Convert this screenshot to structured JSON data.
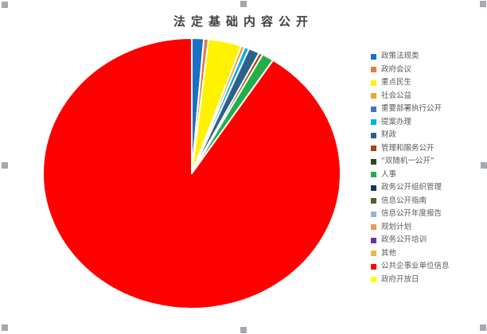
{
  "selection": {
    "handle_color": "#a4a8b1",
    "handles": [
      {
        "name": "top-left"
      },
      {
        "name": "top-middle"
      },
      {
        "name": "top-right"
      },
      {
        "name": "middle-left"
      },
      {
        "name": "middle-right"
      },
      {
        "name": "bottom-left"
      },
      {
        "name": "bottom-middle"
      },
      {
        "name": "bottom-right"
      }
    ]
  },
  "chart_data": {
    "type": "pie",
    "title": "法定基础内容公开",
    "legend_position": "right",
    "start_angle_deg": 0,
    "direction": "clockwise",
    "slice_border_color": "#ffffff",
    "categories": [
      "政策法规类",
      "政府会议",
      "重点民生",
      "社会公益",
      "重要部署执行公开",
      "提案办理",
      "财政",
      "管理和服务公开",
      "“双随机一公开”",
      "人事",
      "政务公开组织管理",
      "信息公开指南",
      "信息公开年度报告",
      "规划计划",
      "政务公开培训",
      "其他",
      "公共企事业单位信息",
      "政府开放日"
    ],
    "values": [
      1.3,
      0.5,
      3.6,
      0.4,
      0,
      0.5,
      1.2,
      0.4,
      0,
      1.3,
      0,
      0,
      0,
      0,
      0,
      0,
      90.8,
      0
    ],
    "colors": [
      "#1a70c2",
      "#e07e3c",
      "#fff200",
      "#efa32e",
      "#4472c4",
      "#00aeef",
      "#2b618c",
      "#9c4a0e",
      "#234d20",
      "#21af4b",
      "#17375e",
      "#4f6228",
      "#95b3d7",
      "#ea9a5f",
      "#7030a0",
      "#e8b84b",
      "#fe0000",
      "#ffff00"
    ]
  }
}
